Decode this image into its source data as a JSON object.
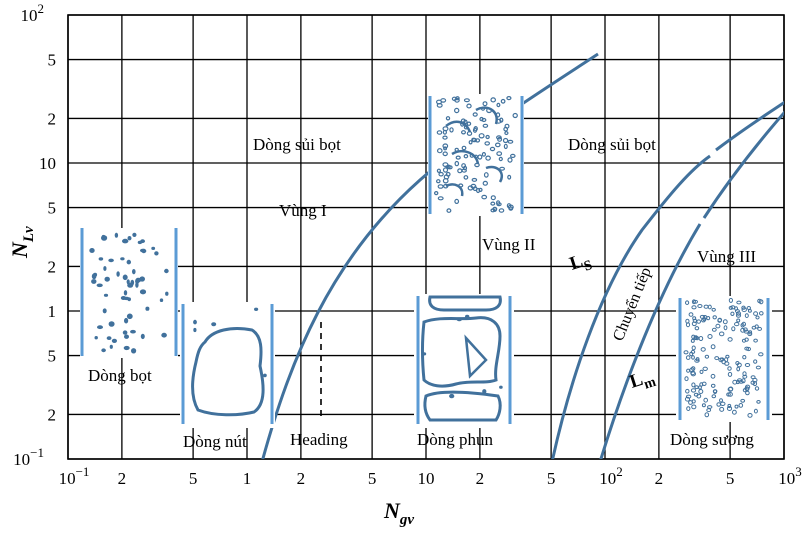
{
  "colors": {
    "curve": "#41719c",
    "pipe": "#5b9bd5",
    "grid": "#000000",
    "fill": "#41719c"
  },
  "axes": {
    "x": {
      "title_main": "N",
      "title_sub": "gv",
      "range": [
        0.1,
        1000
      ],
      "scale": "log",
      "tick_labels": [
        {
          "value": 0.1,
          "main": "10",
          "sup": "−1"
        },
        {
          "value": 0.2,
          "main": "2"
        },
        {
          "value": 0.5,
          "main": "5"
        },
        {
          "value": 1,
          "main": "1"
        },
        {
          "value": 2,
          "main": "2"
        },
        {
          "value": 5,
          "main": "5"
        },
        {
          "value": 10,
          "main": "10"
        },
        {
          "value": 20,
          "main": "2"
        },
        {
          "value": 50,
          "main": "5"
        },
        {
          "value": 100,
          "main": "10",
          "sup": "2"
        },
        {
          "value": 200,
          "main": "2"
        },
        {
          "value": 500,
          "main": "5"
        },
        {
          "value": 1000,
          "main": "10",
          "sup": "3"
        }
      ]
    },
    "y": {
      "title_main": "N",
      "title_sub": "Lv",
      "range": [
        0.1,
        100
      ],
      "scale": "log",
      "tick_labels": [
        {
          "value": 0.1,
          "main": "10",
          "sup": "−1"
        },
        {
          "value": 0.2,
          "main": "2"
        },
        {
          "value": 0.5,
          "main": "5"
        },
        {
          "value": 1,
          "main": "1"
        },
        {
          "value": 2,
          "main": "2"
        },
        {
          "value": 5,
          "main": "5"
        },
        {
          "value": 10,
          "main": "10"
        },
        {
          "value": 20,
          "main": "2"
        },
        {
          "value": 50,
          "main": "5"
        },
        {
          "value": 100,
          "main": "10",
          "sup": "2"
        }
      ]
    },
    "grid": true
  },
  "regions": {
    "bubbly_left": "Dòng sủi bọt",
    "bubbly_right": "Dòng sủi bọt",
    "zone_1": "Vùng I",
    "zone_2": "Vùng II",
    "zone_3": "Vùng III",
    "bubble_flow": "Dòng bọt",
    "slug_flow": "Dòng nút",
    "heading": "Heading",
    "churn_flow": "Dòng phun",
    "mist_flow": "Dòng sương",
    "transition": "Chuyển tiếp"
  },
  "curves": {
    "ls_main": "L",
    "ls_sub": "S",
    "lm_main": "L",
    "lm_sub": "m"
  }
}
